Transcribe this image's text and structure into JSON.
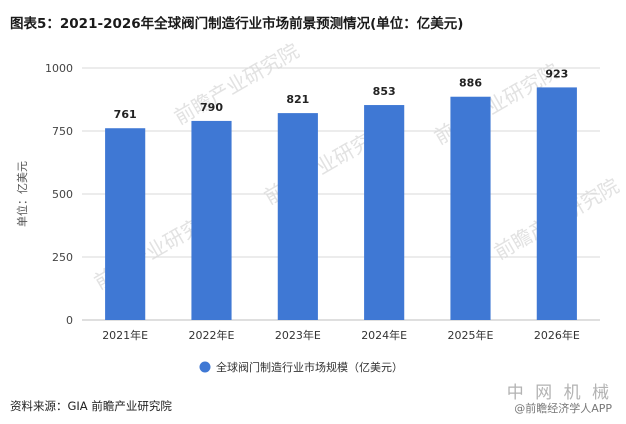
{
  "title": "图表5：2021-2026年全球阀门制造行业市场前景预测情况(单位：亿美元)",
  "source": "资料来源：GIA 前瞻产业研究院",
  "watermarks": {
    "center": "前瞻产业研究院",
    "bottom_right_main": "中 网 机 械",
    "bottom_right_sub": "@前瞻经济学人APP"
  },
  "colors": {
    "bar": "#3f78d4",
    "grid": "#d9d9d9",
    "axis": "#bfbfbf"
  },
  "chart_data": {
    "type": "bar",
    "categories": [
      "2021年E",
      "2022年E",
      "2023年E",
      "2024年E",
      "2025年E",
      "2026年E"
    ],
    "series": [
      {
        "name": "全球阀门制造行业市场规模（亿美元）",
        "values": [
          761,
          790,
          821,
          853,
          886,
          923
        ]
      }
    ],
    "ylabel": "单位：亿美元",
    "ylim": [
      0,
      1000
    ],
    "yticks": [
      0,
      250,
      500,
      750,
      1000
    ],
    "grid": true,
    "legend_position": "bottom"
  }
}
